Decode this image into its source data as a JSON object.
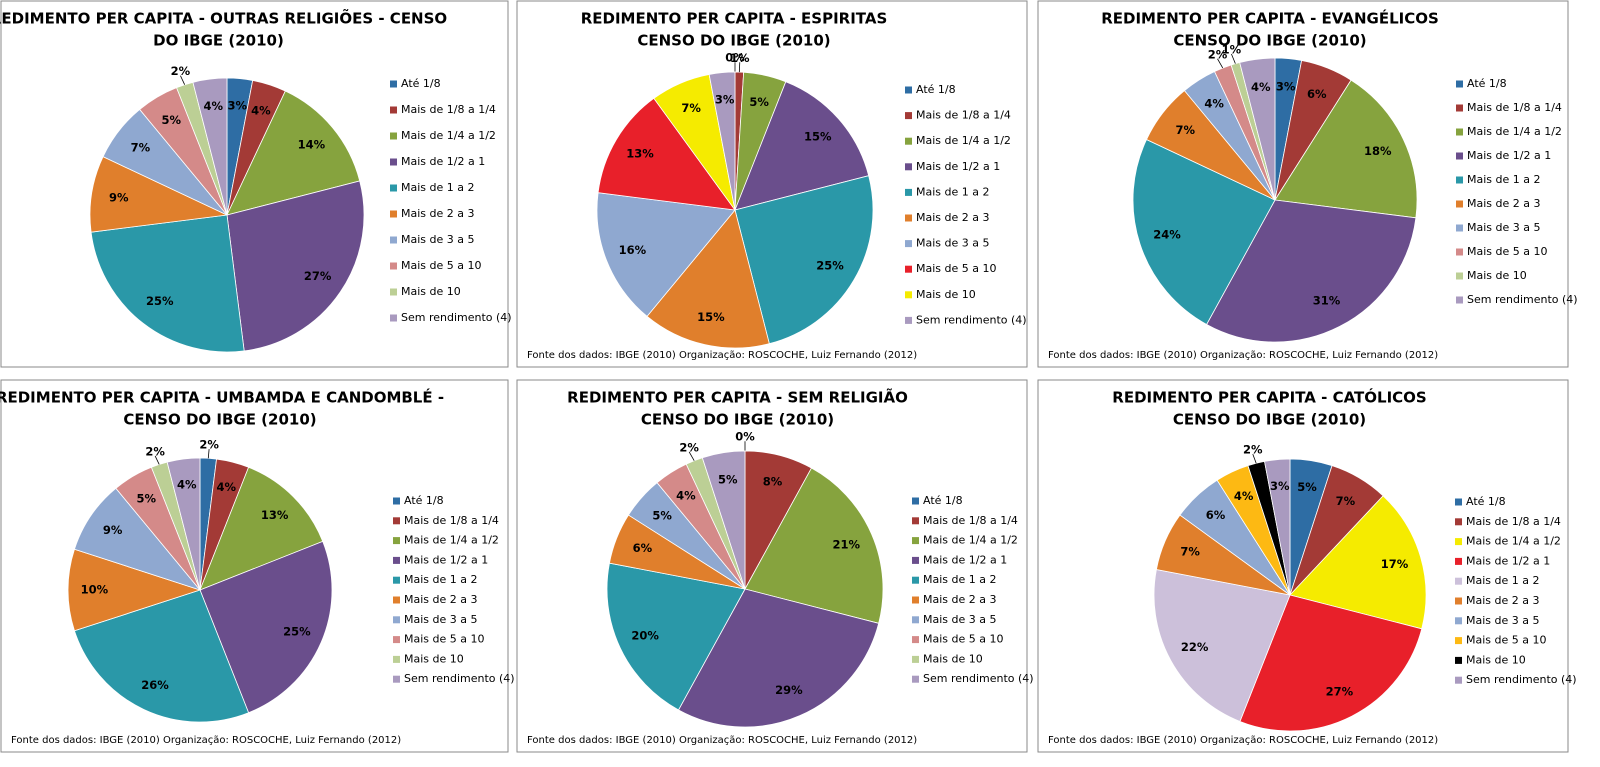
{
  "chart_data": [
    {
      "type": "pie",
      "title": [
        "REDIMENTO PER CAPITA - OUTRAS RELIGIÕES - CENSO",
        "DO IBGE (2010)"
      ],
      "categories": [
        "Até 1/8",
        "Mais de 1/8 a 1/4",
        "Mais de 1/4 a 1/2",
        "Mais de 1/2 a 1",
        "Mais de 1 a 2",
        "Mais de 2 a 3",
        "Mais de 3 a 5",
        "Mais de 5 a 10",
        "Mais de 10",
        "Sem rendimento (4)"
      ],
      "values": [
        3,
        4,
        14,
        27,
        25,
        9,
        7,
        5,
        2,
        4
      ],
      "value_labels": [
        "3%",
        "4%",
        "14%",
        "27%",
        "25%",
        "9%",
        "7%",
        "5%",
        "2%",
        "4%"
      ],
      "colors": [
        "#2e6da4",
        "#a33a36",
        "#86a33e",
        "#6a4e8c",
        "#2a98a8",
        "#e07f2c",
        "#8fa8d0",
        "#d48a89",
        "#bccf95",
        "#a99abf"
      ]
    },
    {
      "type": "pie",
      "title": [
        "REDIMENTO PER CAPITA - ESPIRITAS",
        "CENSO DO IBGE (2010)"
      ],
      "categories": [
        "Até 1/8",
        "Mais de 1/8 a 1/4",
        "Mais de 1/4 a 1/2",
        "Mais de 1/2 a 1",
        "Mais de 1 a 2",
        "Mais de 2 a 3",
        "Mais de 3 a 5",
        "Mais de 5 a 10",
        "Mais de 10",
        "Sem rendimento (4)"
      ],
      "values": [
        0,
        1,
        5,
        15,
        25,
        15,
        16,
        13,
        7,
        3
      ],
      "value_labels": [
        "0%",
        "1%",
        "5%",
        "15%",
        "25%",
        "15%",
        "16%",
        "13%",
        "7%",
        "3%"
      ],
      "colors": [
        "#2e6da4",
        "#a33a36",
        "#86a33e",
        "#6a4e8c",
        "#2a98a8",
        "#e07f2c",
        "#8fa8d0",
        "#e8202a",
        "#f5eb00",
        "#a99abf"
      ],
      "note": "Fonte dos dados: IBGE (2010) Organização: ROSCOCHE, Luiz Fernando (2012)"
    },
    {
      "type": "pie",
      "title": [
        "REDIMENTO PER CAPITA - EVANGÉLICOS",
        "CENSO DO IBGE (2010)"
      ],
      "categories": [
        "Até 1/8",
        "Mais de 1/8 a 1/4",
        "Mais de 1/4 a 1/2",
        "Mais de 1/2 a 1",
        "Mais de 1 a 2",
        "Mais de 2 a 3",
        "Mais de 3 a 5",
        "Mais de 5 a 10",
        "Mais de 10",
        "Sem rendimento (4)"
      ],
      "values": [
        3,
        6,
        18,
        31,
        24,
        7,
        4,
        2,
        1,
        4
      ],
      "value_labels": [
        "3%",
        "6%",
        "18%",
        "31%",
        "24%",
        "7%",
        "4%",
        "2%",
        "1%",
        "4%"
      ],
      "colors": [
        "#2e6da4",
        "#a33a36",
        "#86a33e",
        "#6a4e8c",
        "#2a98a8",
        "#e07f2c",
        "#8fa8d0",
        "#d48a89",
        "#bccf95",
        "#a99abf"
      ],
      "note": "Fonte dos dados: IBGE (2010) Organização: ROSCOCHE, Luiz Fernando (2012)"
    },
    {
      "type": "pie",
      "title": [
        "REDIMENTO PER CAPITA - UMBAMDA E CANDOMBLÉ -",
        "CENSO DO IBGE (2010)"
      ],
      "categories": [
        "Até 1/8",
        "Mais de 1/8 a 1/4",
        "Mais de 1/4 a 1/2",
        "Mais de 1/2 a 1",
        "Mais de 1 a 2",
        "Mais de 2 a 3",
        "Mais de 3 a 5",
        "Mais de 5 a 10",
        "Mais de 10",
        "Sem rendimento (4)"
      ],
      "values": [
        2,
        4,
        13,
        25,
        26,
        10,
        9,
        5,
        2,
        4
      ],
      "value_labels": [
        "2%",
        "4%",
        "13%",
        "25%",
        "26%",
        "10%",
        "9%",
        "5%",
        "2%",
        "4%"
      ],
      "colors": [
        "#2e6da4",
        "#a33a36",
        "#86a33e",
        "#6a4e8c",
        "#2a98a8",
        "#e07f2c",
        "#8fa8d0",
        "#d48a89",
        "#bccf95",
        "#a99abf"
      ],
      "note": "Fonte dos dados: IBGE (2010) Organização: ROSCOCHE, Luiz Fernando (2012)"
    },
    {
      "type": "pie",
      "title": [
        "REDIMENTO PER CAPITA - SEM RELIGIÃO",
        "CENSO DO IBGE (2010)"
      ],
      "categories": [
        "Até 1/8",
        "Mais de 1/8 a 1/4",
        "Mais de 1/4 a 1/2",
        "Mais de 1/2 a 1",
        "Mais de 1 a 2",
        "Mais de 2 a 3",
        "Mais de 3 a 5",
        "Mais de 5 a 10",
        "Mais de 10",
        "Sem rendimento (4)"
      ],
      "values": [
        0,
        8,
        21,
        29,
        20,
        6,
        5,
        4,
        2,
        5
      ],
      "value_labels": [
        "0%",
        "8%",
        "21%",
        "29%",
        "20%",
        "6%",
        "5%",
        "4%",
        "2%",
        "5%"
      ],
      "colors": [
        "#2e6da4",
        "#a33a36",
        "#86a33e",
        "#6a4e8c",
        "#2a98a8",
        "#e07f2c",
        "#8fa8d0",
        "#d48a89",
        "#bccf95",
        "#a99abf"
      ],
      "note": "Fonte dos dados: IBGE (2010) Organização: ROSCOCHE, Luiz Fernando (2012)"
    },
    {
      "type": "pie",
      "title": [
        "REDIMENTO PER CAPITA - CATÓLICOS",
        "CENSO DO IBGE (2010)"
      ],
      "categories": [
        "Até 1/8",
        "Mais de 1/8 a 1/4",
        "Mais de 1/4 a 1/2",
        "Mais de 1/2 a 1",
        "Mais de 1 a 2",
        "Mais de 2 a 3",
        "Mais de 3 a 5",
        "Mais de 5 a 10",
        "Mais de 10",
        "Sem rendimento (4)"
      ],
      "values": [
        5,
        7,
        17,
        27,
        22,
        7,
        6,
        4,
        2,
        3
      ],
      "value_labels": [
        "5%",
        "7%",
        "17%",
        "27%",
        "22%",
        "7%",
        "6%",
        "4%",
        "2%",
        "3%"
      ],
      "colors": [
        "#2e6da4",
        "#a33a36",
        "#f5eb00",
        "#e8202a",
        "#ccc0da",
        "#e07f2c",
        "#8fa8d0",
        "#fdb913",
        "#000000",
        "#a99abf"
      ],
      "note": "Fonte dos dados: IBGE (2010) Organização: ROSCOCHE, Luiz Fernando (2012)"
    }
  ]
}
